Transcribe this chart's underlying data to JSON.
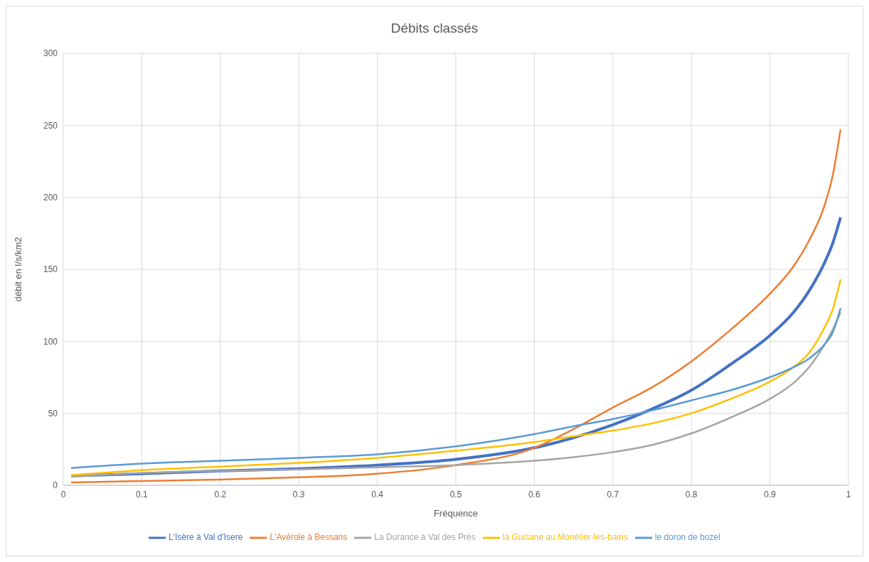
{
  "chart_data": {
    "type": "line",
    "title": "Débits classés",
    "xlabel": "Fréquence",
    "ylabel": "débit en l/s/km2",
    "x": [
      0.01,
      0.1,
      0.2,
      0.3,
      0.4,
      0.5,
      0.6,
      0.65,
      0.7,
      0.75,
      0.8,
      0.85,
      0.9,
      0.93,
      0.95,
      0.97,
      0.98,
      0.99
    ],
    "series": [
      {
        "name": "L'Isère à Val d'Isere",
        "color": "#4472c4",
        "values": [
          6.5,
          8,
          10,
          11.5,
          14,
          18,
          26,
          33,
          42,
          53,
          66,
          84,
          104,
          120,
          135,
          155,
          168,
          186
        ]
      },
      {
        "name": "L'Avérole à Bessans",
        "color": "#ed7d31",
        "values": [
          2,
          3,
          4,
          5.5,
          8,
          14,
          26,
          39,
          54,
          68,
          86,
          108,
          133,
          152,
          170,
          195,
          215,
          247
        ]
      },
      {
        "name": "La Durance à Val des Près",
        "color": "#a5a5a5",
        "values": [
          6,
          8.5,
          10,
          11,
          12.5,
          14,
          17,
          19.5,
          23,
          28,
          36,
          47,
          60,
          71,
          82,
          98,
          108,
          120
        ]
      },
      {
        "name": "la Guisane au Monétier-les-bains",
        "color": "#ffc000",
        "values": [
          7,
          10.5,
          13,
          15.5,
          19,
          24,
          30,
          34,
          38,
          43,
          50,
          60,
          72,
          82,
          92,
          110,
          122,
          143
        ]
      },
      {
        "name": "le doron de bozel",
        "color": "#5b9bd5",
        "values": [
          12,
          15,
          17,
          19,
          21.5,
          27,
          35.5,
          41,
          46,
          52,
          59,
          66,
          75,
          82,
          88,
          98,
          106,
          123
        ]
      }
    ],
    "xlim": [
      0,
      1
    ],
    "xticks": [
      0,
      0.1,
      0.2,
      0.3,
      0.4,
      0.5,
      0.6,
      0.7,
      0.8,
      0.9,
      1
    ],
    "ylim": [
      0,
      300
    ],
    "yticks": [
      0,
      50,
      100,
      150,
      200,
      250,
      300
    ],
    "grid": true,
    "legend": "bottom",
    "marker": "none",
    "line_style": "solid"
  }
}
